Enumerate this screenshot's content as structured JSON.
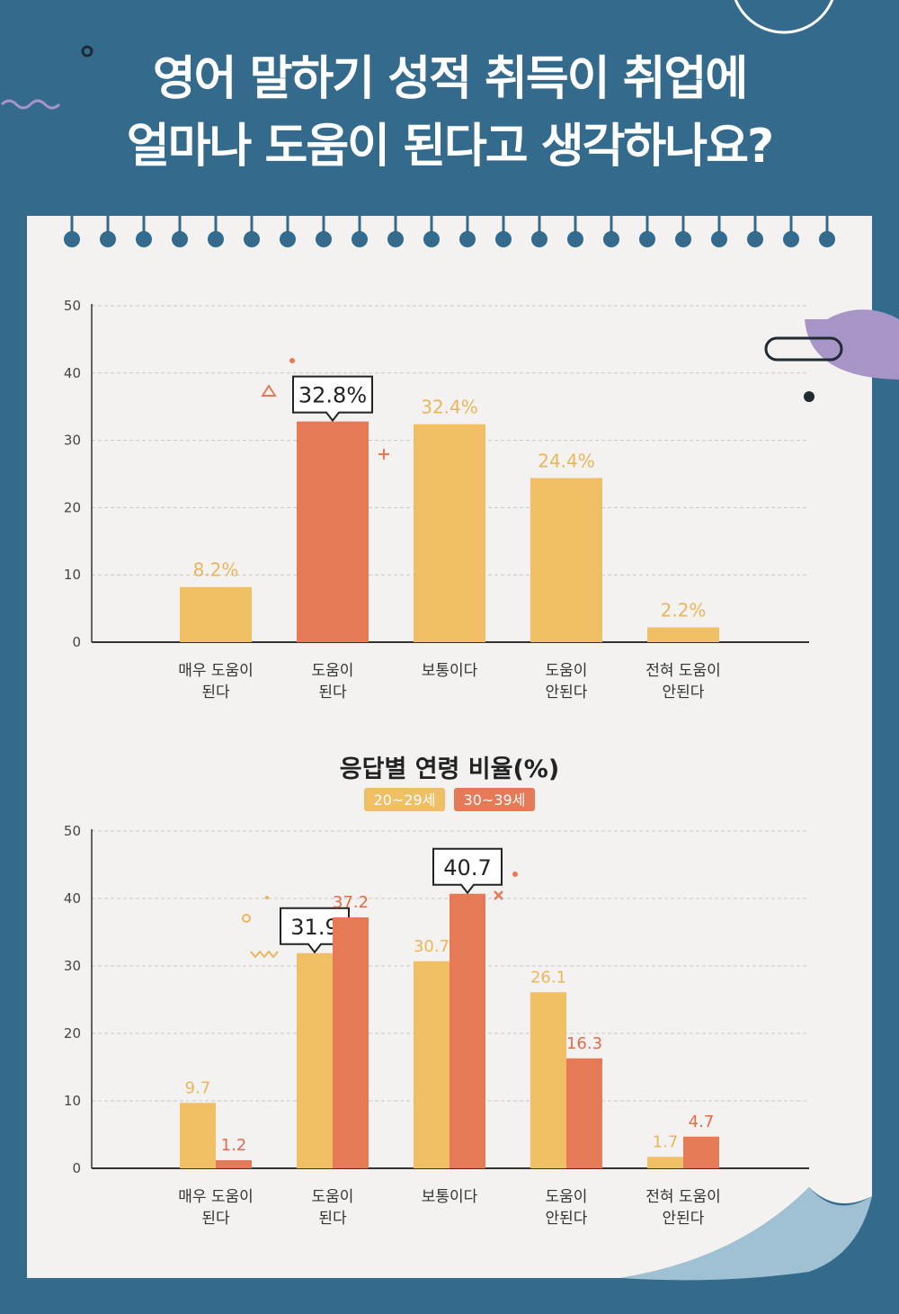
{
  "title_lines": [
    "영어 말하기 성적 취득이 취업에",
    "얼마나 도움이 된다고 생각하나요?"
  ],
  "colors": {
    "background": "#346b8c",
    "paper": "#f3f2f0",
    "yellow": "#f0be64",
    "orange": "#e77a56",
    "value_yellow": "#ebb55a",
    "value_orange": "#e06c4a",
    "accent_purple": "#a695c6"
  },
  "chart_data": [
    {
      "type": "bar",
      "categories": [
        [
          "매우 도움이",
          "된다"
        ],
        [
          "도움이",
          "된다"
        ],
        [
          "보통이다"
        ],
        [
          "도움이",
          "안된다"
        ],
        [
          "전혀 도움이",
          "안된다"
        ]
      ],
      "values": [
        8.2,
        32.8,
        32.4,
        24.4,
        2.2
      ],
      "value_labels": [
        "8.2%",
        "32.8%",
        "32.4%",
        "24.4%",
        "2.2%"
      ],
      "highlight_index": 1,
      "ylim": [
        0,
        50
      ],
      "yticks": [
        0,
        10,
        20,
        30,
        40,
        50
      ],
      "grid": true
    },
    {
      "type": "bar",
      "title": "응답별 연령 비율(%)",
      "categories": [
        [
          "매우 도움이",
          "된다"
        ],
        [
          "도움이",
          "된다"
        ],
        [
          "보통이다"
        ],
        [
          "도움이",
          "안된다"
        ],
        [
          "전혀 도움이",
          "안된다"
        ]
      ],
      "series": [
        {
          "name": "20~29세",
          "values": [
            9.7,
            31.9,
            30.7,
            26.1,
            1.7
          ],
          "labels": [
            "9.7",
            "31.9",
            "30.7",
            "26.1",
            "1.7"
          ]
        },
        {
          "name": "30~39세",
          "values": [
            1.2,
            37.2,
            40.7,
            16.3,
            4.7
          ],
          "labels": [
            "1.2",
            "37.2",
            "40.7",
            "16.3",
            "4.7"
          ]
        }
      ],
      "callouts": [
        {
          "series": 0,
          "index": 1
        },
        {
          "series": 1,
          "index": 2
        }
      ],
      "legend_position": "top-center",
      "ylim": [
        0,
        50
      ],
      "yticks": [
        0,
        10,
        20,
        30,
        40,
        50
      ],
      "grid": true
    }
  ]
}
